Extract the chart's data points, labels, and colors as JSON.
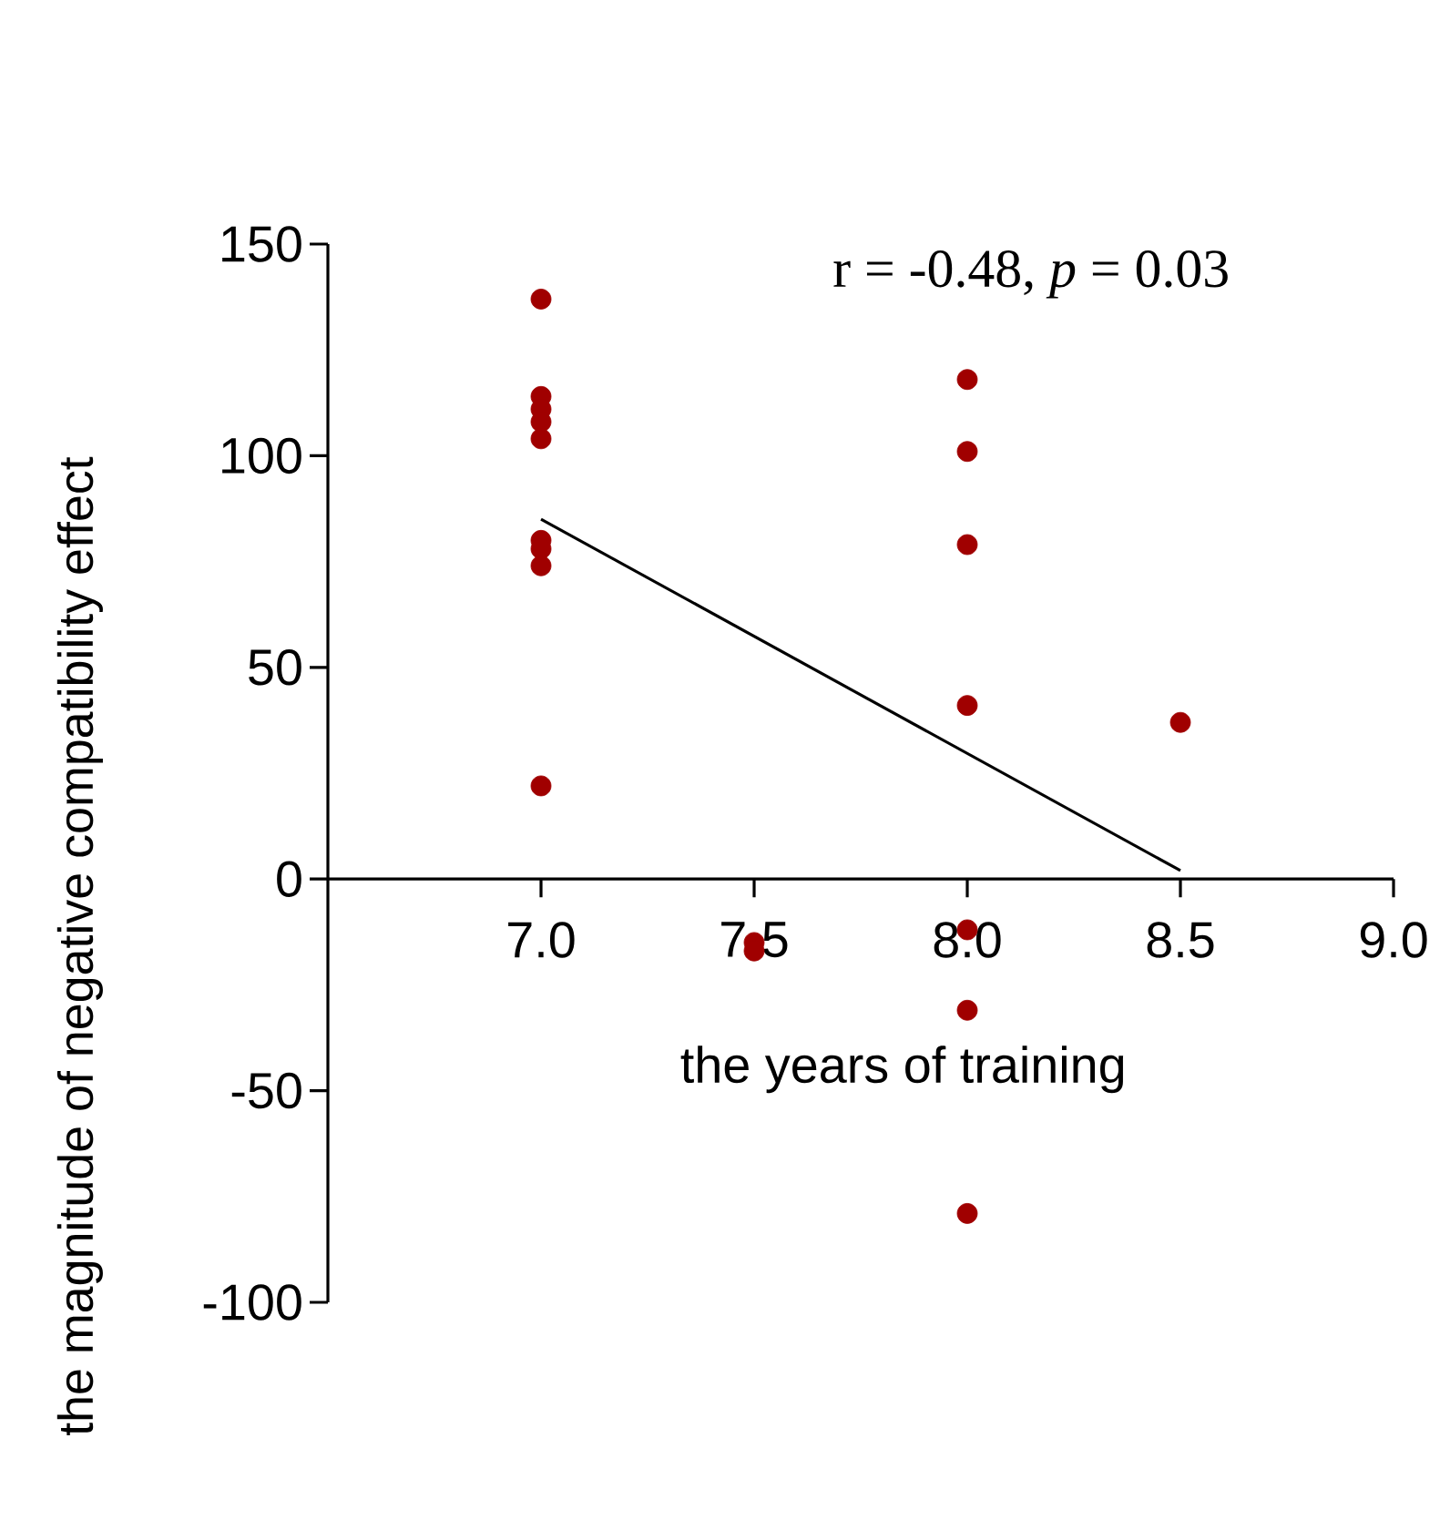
{
  "chart_data": {
    "type": "scatter",
    "xlabel": "the years of training",
    "ylabel": "the magnitude of negative compatibility effect",
    "annotations": [
      "r = -0.48, *p* = 0.03"
    ],
    "xlim": [
      6.5,
      9.0
    ],
    "xticks": [
      {
        "value": 7.0,
        "label": "7.0"
      },
      {
        "value": 7.5,
        "label": "7.5"
      },
      {
        "value": 8.0,
        "label": "8.0"
      },
      {
        "value": 8.5,
        "label": "8.5"
      },
      {
        "value": 9.0,
        "label": "9.0"
      }
    ],
    "ylim": [
      -100,
      150
    ],
    "yticks": [
      -100,
      -50,
      0,
      50,
      100,
      150
    ],
    "grid": false,
    "series": [
      {
        "color": "#a00000",
        "x": [
          7.0,
          7.0,
          7.0,
          7.0,
          7.0,
          7.0,
          7.0,
          7.0,
          7.0,
          7.5,
          7.5,
          8.0,
          8.0,
          8.0,
          8.0,
          8.0,
          8.0,
          8.0,
          8.5
        ],
        "values": [
          137,
          114,
          111,
          108,
          104,
          80,
          78,
          74,
          22,
          -15,
          -17,
          118,
          101,
          79,
          41,
          -12,
          -31,
          -79,
          37
        ]
      },
      {
        "type": "line",
        "color": "#000000",
        "x": [
          7.0,
          8.5
        ],
        "values": [
          85,
          2
        ]
      }
    ]
  }
}
